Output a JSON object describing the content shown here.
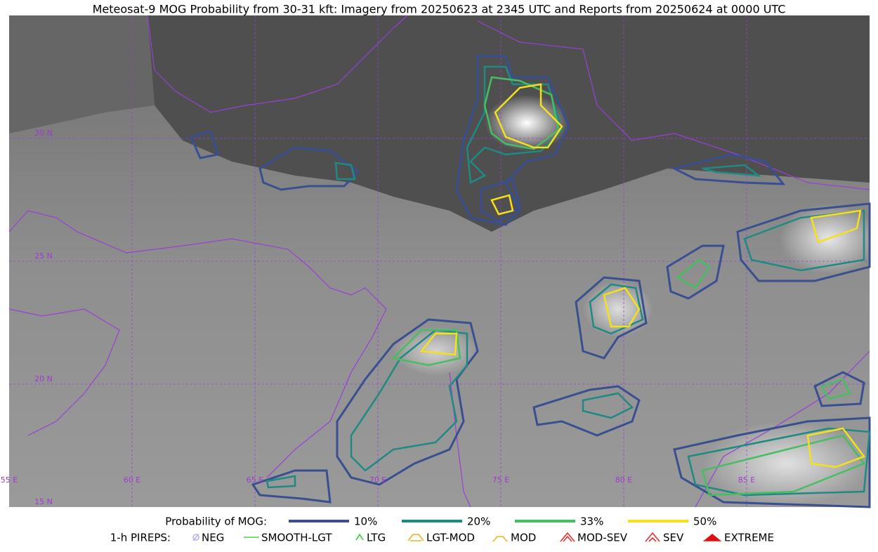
{
  "title": "Meteosat-9 MOG Probability from 30-31 kft: Imagery from 20250623 at 2345 UTC and Reports from 20250624 at 0000 UTC",
  "map": {
    "lon_labels": [
      "55 E",
      "60 E",
      "65 E",
      "70 E",
      "75 E",
      "80 E",
      "85 E"
    ],
    "lat_labels": [
      "30 N",
      "25 N",
      "20 N",
      "15 N"
    ]
  },
  "legend": {
    "probability": {
      "label": "Probability of MOG:",
      "items": [
        {
          "label": "10%",
          "color": "#3a4f8f"
        },
        {
          "label": "20%",
          "color": "#1f8a84"
        },
        {
          "label": "33%",
          "color": "#47be5f"
        },
        {
          "label": "50%",
          "color": "#f4e01c"
        }
      ]
    },
    "pireps": {
      "label": "1-h PIREPS:",
      "items": [
        {
          "label": "NEG",
          "color": "#b8b4f0"
        },
        {
          "label": "SMOOTH-LGT",
          "color": "#4cd44c"
        },
        {
          "label": "LTG",
          "color": "#22dd22"
        },
        {
          "label": "LGT-MOD",
          "color": "#f0b020"
        },
        {
          "label": "MOD",
          "color": "#f0b020"
        },
        {
          "label": "MOD-SEV",
          "color": "#e83030"
        },
        {
          "label": "SEV",
          "color": "#e83030"
        },
        {
          "label": "EXTREME",
          "color": "#e01010"
        }
      ]
    }
  }
}
